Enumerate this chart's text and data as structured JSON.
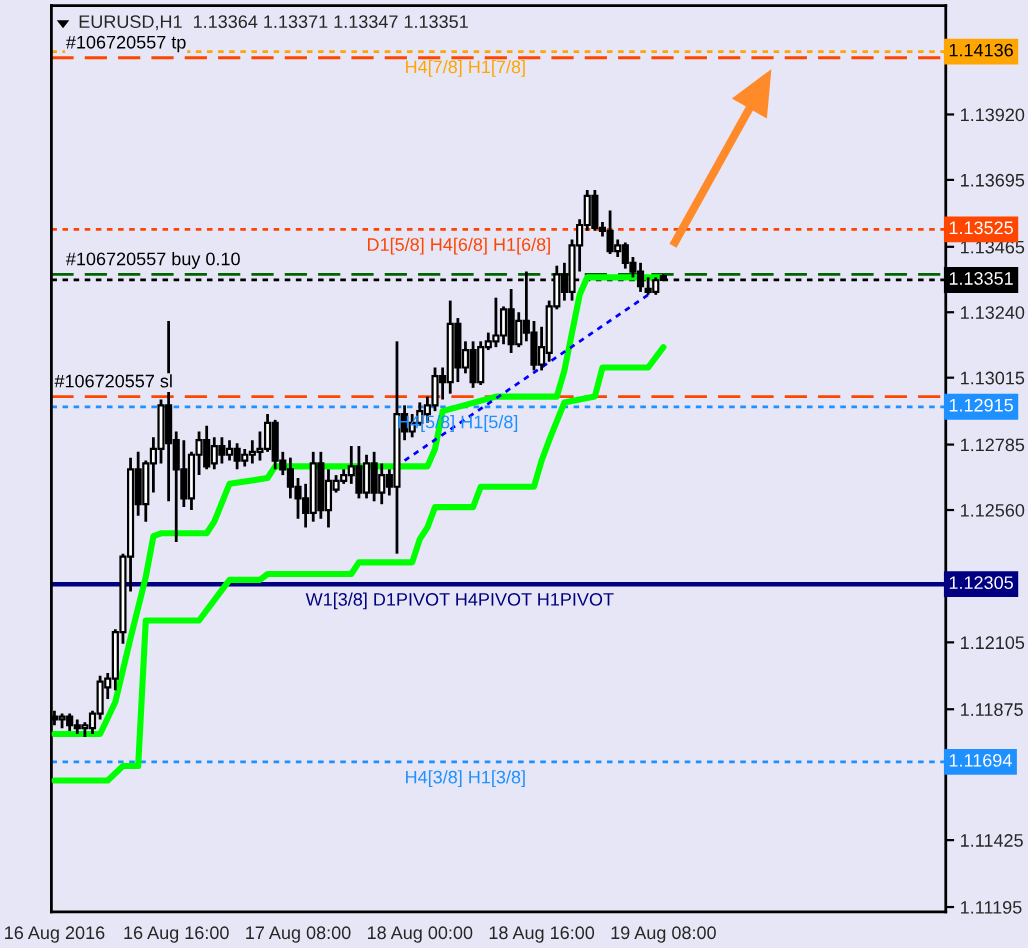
{
  "chart_data": {
    "type": "candlestick",
    "title": "EURUSD,H1  1.13364 1.13371 1.13347 1.13351",
    "x": [
      "2016-08-16T00:00",
      "2016-08-16T01:00",
      "2016-08-16T02:00",
      "2016-08-16T03:00",
      "2016-08-16T04:00",
      "2016-08-16T05:00",
      "2016-08-16T06:00",
      "2016-08-16T07:00",
      "2016-08-16T08:00",
      "2016-08-16T09:00",
      "2016-08-16T10:00",
      "2016-08-16T11:00",
      "2016-08-16T12:00",
      "2016-08-16T13:00",
      "2016-08-16T14:00",
      "2016-08-16T15:00",
      "2016-08-16T16:00",
      "2016-08-16T17:00",
      "2016-08-16T18:00",
      "2016-08-16T19:00",
      "2016-08-16T20:00",
      "2016-08-16T21:00",
      "2016-08-16T22:00",
      "2016-08-16T23:00",
      "2016-08-17T00:00",
      "2016-08-17T01:00",
      "2016-08-17T02:00",
      "2016-08-17T03:00",
      "2016-08-17T04:00",
      "2016-08-17T05:00",
      "2016-08-17T06:00",
      "2016-08-17T07:00",
      "2016-08-17T08:00",
      "2016-08-17T09:00",
      "2016-08-17T10:00",
      "2016-08-17T11:00",
      "2016-08-17T12:00",
      "2016-08-17T13:00",
      "2016-08-17T14:00",
      "2016-08-17T15:00",
      "2016-08-17T16:00",
      "2016-08-17T17:00",
      "2016-08-17T18:00",
      "2016-08-17T19:00",
      "2016-08-17T20:00",
      "2016-08-17T21:00",
      "2016-08-17T22:00",
      "2016-08-17T23:00",
      "2016-08-18T00:00",
      "2016-08-18T01:00",
      "2016-08-18T02:00",
      "2016-08-18T03:00",
      "2016-08-18T04:00",
      "2016-08-18T05:00",
      "2016-08-18T06:00",
      "2016-08-18T07:00",
      "2016-08-18T08:00",
      "2016-08-18T09:00",
      "2016-08-18T10:00",
      "2016-08-18T11:00",
      "2016-08-18T12:00",
      "2016-08-18T13:00",
      "2016-08-18T14:00",
      "2016-08-18T15:00",
      "2016-08-18T16:00",
      "2016-08-18T17:00",
      "2016-08-18T18:00",
      "2016-08-18T19:00",
      "2016-08-18T20:00",
      "2016-08-18T21:00",
      "2016-08-18T22:00",
      "2016-08-18T23:00",
      "2016-08-19T00:00",
      "2016-08-19T01:00",
      "2016-08-19T02:00",
      "2016-08-19T03:00",
      "2016-08-19T04:00",
      "2016-08-19T05:00",
      "2016-08-19T06:00",
      "2016-08-19T07:00",
      "2016-08-19T08:00"
    ],
    "ohlc": [
      [
        1.1185,
        1.1187,
        1.1182,
        1.1184
      ],
      [
        1.1184,
        1.1186,
        1.1181,
        1.1185
      ],
      [
        1.1185,
        1.1186,
        1.118,
        1.1182
      ],
      [
        1.1182,
        1.1184,
        1.1179,
        1.1181
      ],
      [
        1.1181,
        1.1183,
        1.1178,
        1.1182
      ],
      [
        1.1181,
        1.1187,
        1.1179,
        1.1186
      ],
      [
        1.1186,
        1.1199,
        1.1184,
        1.1197
      ],
      [
        1.1195,
        1.12,
        1.1191,
        1.1198
      ],
      [
        1.1198,
        1.1215,
        1.1194,
        1.1214
      ],
      [
        1.1214,
        1.1241,
        1.121,
        1.124
      ],
      [
        1.124,
        1.1274,
        1.1228,
        1.127
      ],
      [
        1.127,
        1.1276,
        1.1254,
        1.1258
      ],
      [
        1.1258,
        1.1273,
        1.1252,
        1.1272
      ],
      [
        1.1272,
        1.1281,
        1.1262,
        1.1277
      ],
      [
        1.1277,
        1.1294,
        1.1272,
        1.1292
      ],
      [
        1.1292,
        1.1321,
        1.1259,
        1.1279
      ],
      [
        1.128,
        1.1283,
        1.1245,
        1.127
      ],
      [
        1.127,
        1.128,
        1.1257,
        1.126
      ],
      [
        1.126,
        1.1276,
        1.1256,
        1.1275
      ],
      [
        1.1275,
        1.1283,
        1.1268,
        1.128
      ],
      [
        1.128,
        1.1285,
        1.127,
        1.1271
      ],
      [
        1.1272,
        1.1281,
        1.127,
        1.1278
      ],
      [
        1.1278,
        1.1281,
        1.1272,
        1.1275
      ],
      [
        1.1275,
        1.128,
        1.1273,
        1.1277
      ],
      [
        1.1277,
        1.1279,
        1.127,
        1.1273
      ],
      [
        1.1273,
        1.1277,
        1.1271,
        1.1275
      ],
      [
        1.1275,
        1.128,
        1.1272,
        1.1276
      ],
      [
        1.1276,
        1.1283,
        1.1273,
        1.1277
      ],
      [
        1.1277,
        1.1289,
        1.1276,
        1.1286
      ],
      [
        1.1286,
        1.1287,
        1.127,
        1.1273
      ],
      [
        1.1273,
        1.1276,
        1.1268,
        1.127
      ],
      [
        1.127,
        1.1274,
        1.126,
        1.1264
      ],
      [
        1.1264,
        1.1267,
        1.1253,
        1.126
      ],
      [
        1.126,
        1.1265,
        1.125,
        1.1255
      ],
      [
        1.1255,
        1.1276,
        1.1252,
        1.1272
      ],
      [
        1.1272,
        1.1276,
        1.1253,
        1.1256
      ],
      [
        1.1256,
        1.127,
        1.125,
        1.1266
      ],
      [
        1.1263,
        1.1268,
        1.1262,
        1.1266
      ],
      [
        1.1266,
        1.127,
        1.1265,
        1.1268
      ],
      [
        1.1268,
        1.1278,
        1.1265,
        1.1271
      ],
      [
        1.1271,
        1.1278,
        1.126,
        1.1262
      ],
      [
        1.1262,
        1.1275,
        1.126,
        1.1272
      ],
      [
        1.1272,
        1.1276,
        1.1259,
        1.1262
      ],
      [
        1.1262,
        1.1272,
        1.1258,
        1.1268
      ],
      [
        1.1268,
        1.127,
        1.1261,
        1.1264
      ],
      [
        1.1264,
        1.1314,
        1.1241,
        1.1289
      ],
      [
        1.1289,
        1.1292,
        1.128,
        1.1283
      ],
      [
        1.1283,
        1.1289,
        1.1281,
        1.1286
      ],
      [
        1.1286,
        1.1293,
        1.1285,
        1.129
      ],
      [
        1.1289,
        1.1295,
        1.1286,
        1.1292
      ],
      [
        1.1292,
        1.1305,
        1.129,
        1.1302
      ],
      [
        1.1302,
        1.1305,
        1.1294,
        1.13
      ],
      [
        1.13,
        1.1328,
        1.1296,
        1.132
      ],
      [
        1.132,
        1.1322,
        1.13,
        1.1305
      ],
      [
        1.1305,
        1.1314,
        1.1303,
        1.1311
      ],
      [
        1.1311,
        1.1314,
        1.1298,
        1.13
      ],
      [
        1.13,
        1.1314,
        1.1299,
        1.1312
      ],
      [
        1.1312,
        1.1317,
        1.1311,
        1.1314
      ],
      [
        1.1314,
        1.1329,
        1.1312,
        1.1316
      ],
      [
        1.1316,
        1.1326,
        1.1313,
        1.1325
      ],
      [
        1.1325,
        1.1332,
        1.131,
        1.1313
      ],
      [
        1.1313,
        1.1324,
        1.1312,
        1.1321
      ],
      [
        1.1321,
        1.1338,
        1.1314,
        1.1317
      ],
      [
        1.1317,
        1.1321,
        1.1304,
        1.1306
      ],
      [
        1.1306,
        1.1319,
        1.1304,
        1.1312
      ],
      [
        1.131,
        1.1328,
        1.1307,
        1.1326
      ],
      [
        1.1326,
        1.134,
        1.1325,
        1.1337
      ],
      [
        1.1337,
        1.1341,
        1.1328,
        1.1331
      ],
      [
        1.1331,
        1.1349,
        1.1328,
        1.1347
      ],
      [
        1.1347,
        1.1356,
        1.1338,
        1.1354
      ],
      [
        1.1354,
        1.1366,
        1.1352,
        1.1364
      ],
      [
        1.1364,
        1.1366,
        1.1352,
        1.1353
      ],
      [
        1.1353,
        1.1355,
        1.135,
        1.1352
      ],
      [
        1.1352,
        1.1359,
        1.1344,
        1.1345
      ],
      [
        1.1345,
        1.1349,
        1.1343,
        1.1347
      ],
      [
        1.1347,
        1.1348,
        1.1339,
        1.1341
      ],
      [
        1.1341,
        1.1343,
        1.1336,
        1.1338
      ],
      [
        1.1338,
        1.1341,
        1.1331,
        1.1333
      ],
      [
        1.1332,
        1.1336,
        1.133,
        1.1331
      ],
      [
        1.1331,
        1.1336,
        1.133,
        1.1335
      ],
      [
        1.13364,
        1.13371,
        1.13347,
        1.13351
      ]
    ],
    "series": [
      {
        "type": "line",
        "color": "#00ff00",
        "line_style": "solid",
        "x": [
          "2016-08-16T00:00",
          "2016-08-16T06:00",
          "2016-08-16T08:00",
          "2016-08-16T10:00",
          "2016-08-16T12:00",
          "2016-08-16T13:00",
          "2016-08-16T14:00",
          "2016-08-16T20:00",
          "2016-08-16T21:00",
          "2016-08-16T23:00",
          "2016-08-17T04:00",
          "2016-08-17T05:00",
          "2016-08-18T01:00",
          "2016-08-18T02:00",
          "2016-08-18T03:00",
          "2016-08-18T10:00",
          "2016-08-18T18:00",
          "2016-08-18T19:00",
          "2016-08-18T20:00",
          "2016-08-18T21:00",
          "2016-08-18T22:00",
          "2016-08-19T08:00"
        ],
        "values": [
          1.1179,
          1.1179,
          1.119,
          1.1212,
          1.1233,
          1.1247,
          1.1248,
          1.1248,
          1.1252,
          1.1265,
          1.1267,
          1.1271,
          1.1271,
          1.1277,
          1.129,
          1.1295,
          1.1295,
          1.1304,
          1.1317,
          1.133,
          1.1336,
          1.1336
        ]
      },
      {
        "type": "line",
        "color": "#00ff00",
        "line_style": "solid",
        "x": [
          "2016-08-16T00:00",
          "2016-08-16T07:00",
          "2016-08-16T09:00",
          "2016-08-16T11:00",
          "2016-08-16T12:00",
          "2016-08-16T19:00",
          "2016-08-16T21:00",
          "2016-08-16T23:00",
          "2016-08-17T03:00",
          "2016-08-17T04:00",
          "2016-08-17T15:00",
          "2016-08-17T16:00",
          "2016-08-17T23:00",
          "2016-08-18T00:00",
          "2016-08-18T01:00",
          "2016-08-18T02:00",
          "2016-08-18T07:00",
          "2016-08-18T08:00",
          "2016-08-18T15:00",
          "2016-08-18T16:00",
          "2016-08-18T17:00",
          "2016-08-18T19:00",
          "2016-08-18T23:00",
          "2016-08-19T00:00",
          "2016-08-19T06:00",
          "2016-08-19T08:00"
        ],
        "values": [
          1.1163,
          1.1163,
          1.1168,
          1.1168,
          1.1218,
          1.1218,
          1.1225,
          1.1232,
          1.1232,
          1.1234,
          1.1234,
          1.1238,
          1.1238,
          1.1246,
          1.125,
          1.1257,
          1.1257,
          1.1264,
          1.1264,
          1.1273,
          1.128,
          1.1293,
          1.1295,
          1.1305,
          1.1305,
          1.1312
        ]
      },
      {
        "type": "line",
        "color": "#0000ff",
        "line_style": "dotted",
        "x": [
          "2016-08-17T22:00",
          "2016-08-19T06:00"
        ],
        "values": [
          1.1273,
          1.133
        ]
      }
    ],
    "ref_lines": [
      {
        "axis": "y",
        "value": 1.14136,
        "label": "1.14136",
        "color": "#ffa500",
        "line_style": "dotted"
      },
      {
        "axis": "y",
        "value": 1.14115,
        "color": "#ff4500",
        "line_style": "dashed"
      },
      {
        "axis": "y",
        "value": 1.13525,
        "label": "1.13525",
        "color": "#ff4500",
        "line_style": "dotted"
      },
      {
        "axis": "y",
        "value": 1.1337,
        "color": "#006400",
        "line_style": "dashed"
      },
      {
        "axis": "y",
        "value": 1.13351,
        "label": "1.13351",
        "color": "#000000",
        "line_style": "dotted"
      },
      {
        "axis": "y",
        "value": 1.1295,
        "color": "#ff4500",
        "line_style": "dashed"
      },
      {
        "axis": "y",
        "value": 1.12915,
        "label": "1.12915",
        "color": "#1e90ff",
        "line_style": "dotted"
      },
      {
        "axis": "y",
        "value": 1.12305,
        "label": "1.12305",
        "color": "#000080",
        "line_style": "solid"
      },
      {
        "axis": "y",
        "value": 1.11694,
        "label": "1.11694",
        "color": "#1e90ff",
        "line_style": "dotted"
      }
    ],
    "annotations": [
      {
        "text": "#106720557 tp",
        "x": "2016-08-16T01:30",
        "y": 1.14115
      },
      {
        "text": "H4[7/8] H1[7/8]",
        "x": "2016-08-17T22:00",
        "y": 1.14136
      },
      {
        "text": "D1[5/8] H4[6/8] H1[6/8]",
        "x": "2016-08-17T17:00",
        "y": 1.13525
      },
      {
        "text": "#106720557 buy 0.10",
        "x": "2016-08-16T01:30",
        "y": 1.1337
      },
      {
        "text": "#106720557 sl",
        "x": "2016-08-16T00:00",
        "y": 1.1295
      },
      {
        "text": "H4[5/8] H1[5/8]",
        "x": "2016-08-17T21:00",
        "y": 1.12915
      },
      {
        "text": "W1[3/8] D1PIVOT H4PIVOT H1PIVOT",
        "x": "2016-08-17T09:00",
        "y": 1.12305
      },
      {
        "text": "H4[3/8] H1[3/8]",
        "x": "2016-08-17T22:00",
        "y": 1.11694
      }
    ],
    "xlim": [
      "2016-08-15T23:36",
      "2016-08-20T21:06"
    ],
    "xticks": [
      {
        "value": "2016-08-16T00:00",
        "label": "16 Aug 2016"
      },
      {
        "value": "2016-08-16T16:00",
        "label": "16 Aug 16:00"
      },
      {
        "value": "2016-08-17T08:00",
        "label": "17 Aug 08:00"
      },
      {
        "value": "2016-08-18T00:00",
        "label": "18 Aug 00:00"
      },
      {
        "value": "2016-08-18T16:00",
        "label": "18 Aug 16:00"
      },
      {
        "value": "2016-08-19T08:00",
        "label": "19 Aug 08:00"
      }
    ],
    "ylim": [
      1.11178,
      1.14294
    ],
    "yticks": [
      {
        "value": 1.1392,
        "label": "1.13920"
      },
      {
        "value": 1.13695,
        "label": "1.13695"
      },
      {
        "value": 1.13465,
        "label": "1.13465"
      },
      {
        "value": 1.1324,
        "label": "1.13240"
      },
      {
        "value": 1.13015,
        "label": "1.13015"
      },
      {
        "value": 1.12785,
        "label": "1.12785"
      },
      {
        "value": 1.1256,
        "label": "1.12560"
      },
      {
        "value": 1.12105,
        "label": "1.12105"
      },
      {
        "value": 1.11875,
        "label": "1.11875"
      },
      {
        "value": 1.11425,
        "label": "1.11425"
      },
      {
        "value": 1.11195,
        "label": "1.11195"
      }
    ],
    "grid": false,
    "legend": false
  }
}
